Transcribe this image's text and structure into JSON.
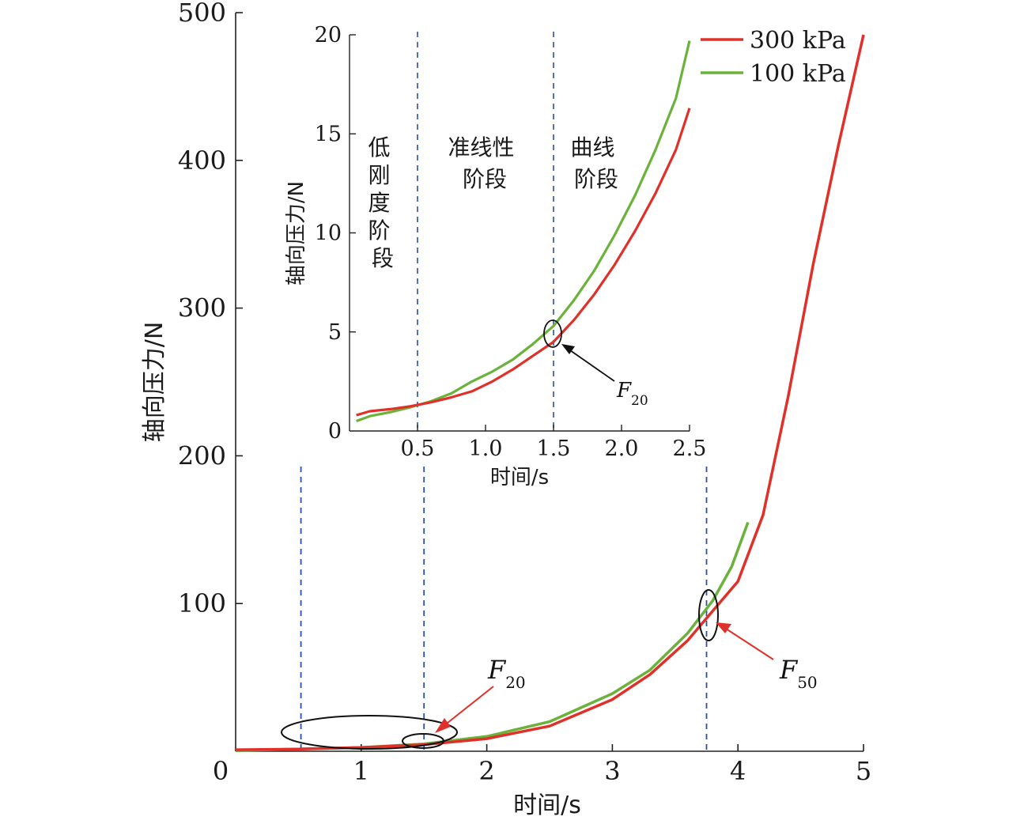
{
  "chart_data": [
    {
      "type": "line",
      "xlabel": "时间/s",
      "ylabel": "轴向压力/N",
      "xlim": [
        0,
        5
      ],
      "ylim": [
        0,
        500
      ],
      "xticks": [
        "0",
        "1",
        "2",
        "3",
        "4",
        "5"
      ],
      "yticks": [
        "100",
        "200",
        "300",
        "400",
        "500"
      ],
      "grid": false,
      "legend_position": "top-right",
      "series": [
        {
          "name": "300 kPa",
          "color": "#e0302a",
          "x": [
            0,
            0.5,
            1.0,
            1.5,
            2.0,
            2.5,
            3.0,
            3.3,
            3.6,
            3.8,
            4.0,
            4.2,
            4.4,
            4.6,
            4.8,
            5.0
          ],
          "y": [
            1.0,
            1.5,
            2.5,
            4.5,
            8.5,
            17,
            35,
            52,
            75,
            95,
            115,
            160,
            240,
            330,
            410,
            485
          ]
        },
        {
          "name": "100 kPa",
          "color": "#6ab23a",
          "x": [
            0,
            0.5,
            1.0,
            1.5,
            2.0,
            2.5,
            3.0,
            3.3,
            3.6,
            3.8,
            3.95,
            4.08
          ],
          "y": [
            0.5,
            1.5,
            2.5,
            5,
            10,
            20,
            39,
            55,
            80,
            102,
            125,
            155
          ]
        }
      ],
      "vlines": [
        0.52,
        1.5,
        3.75
      ],
      "annotations": [
        {
          "label": "F",
          "subscript": "20"
        },
        {
          "label": "F",
          "subscript": "50"
        }
      ]
    },
    {
      "type": "line",
      "xlabel": "时间/s",
      "ylabel": "轴向压力/N",
      "xlim": [
        0,
        2.5
      ],
      "ylim": [
        0,
        20
      ],
      "xticks": [
        "0.5",
        "1.0",
        "1.5",
        "2.0",
        "2.5"
      ],
      "yticks": [
        "0",
        "5",
        "10",
        "15",
        "20"
      ],
      "vlines": [
        0.5,
        1.5
      ],
      "stage_labels": [
        {
          "lines": [
            "低",
            "刚",
            "度",
            "阶",
            "段"
          ]
        },
        {
          "lines": [
            "准线性",
            "阶段"
          ]
        },
        {
          "lines": [
            "曲线",
            "阶段"
          ]
        }
      ],
      "annotation": {
        "label": "F",
        "subscript": "20"
      },
      "series": [
        {
          "name": "300 kPa",
          "color": "#e0302a",
          "x": [
            0.05,
            0.15,
            0.3,
            0.45,
            0.6,
            0.75,
            0.9,
            1.05,
            1.2,
            1.35,
            1.5,
            1.65,
            1.8,
            1.95,
            2.1,
            2.25,
            2.4,
            2.5
          ],
          "y": [
            0.8,
            1.0,
            1.1,
            1.25,
            1.45,
            1.7,
            2.0,
            2.5,
            3.1,
            3.8,
            4.5,
            5.6,
            6.9,
            8.4,
            10.1,
            12.0,
            14.2,
            16.3
          ]
        },
        {
          "name": "100 kPa",
          "color": "#6ab23a",
          "x": [
            0.05,
            0.15,
            0.3,
            0.45,
            0.6,
            0.75,
            0.9,
            1.05,
            1.2,
            1.35,
            1.5,
            1.65,
            1.8,
            1.95,
            2.1,
            2.25,
            2.4,
            2.5
          ],
          "y": [
            0.5,
            0.75,
            0.95,
            1.2,
            1.5,
            1.9,
            2.5,
            3.0,
            3.6,
            4.4,
            5.3,
            6.6,
            8.1,
            9.9,
            11.9,
            14.2,
            16.8,
            19.7
          ]
        }
      ]
    }
  ]
}
